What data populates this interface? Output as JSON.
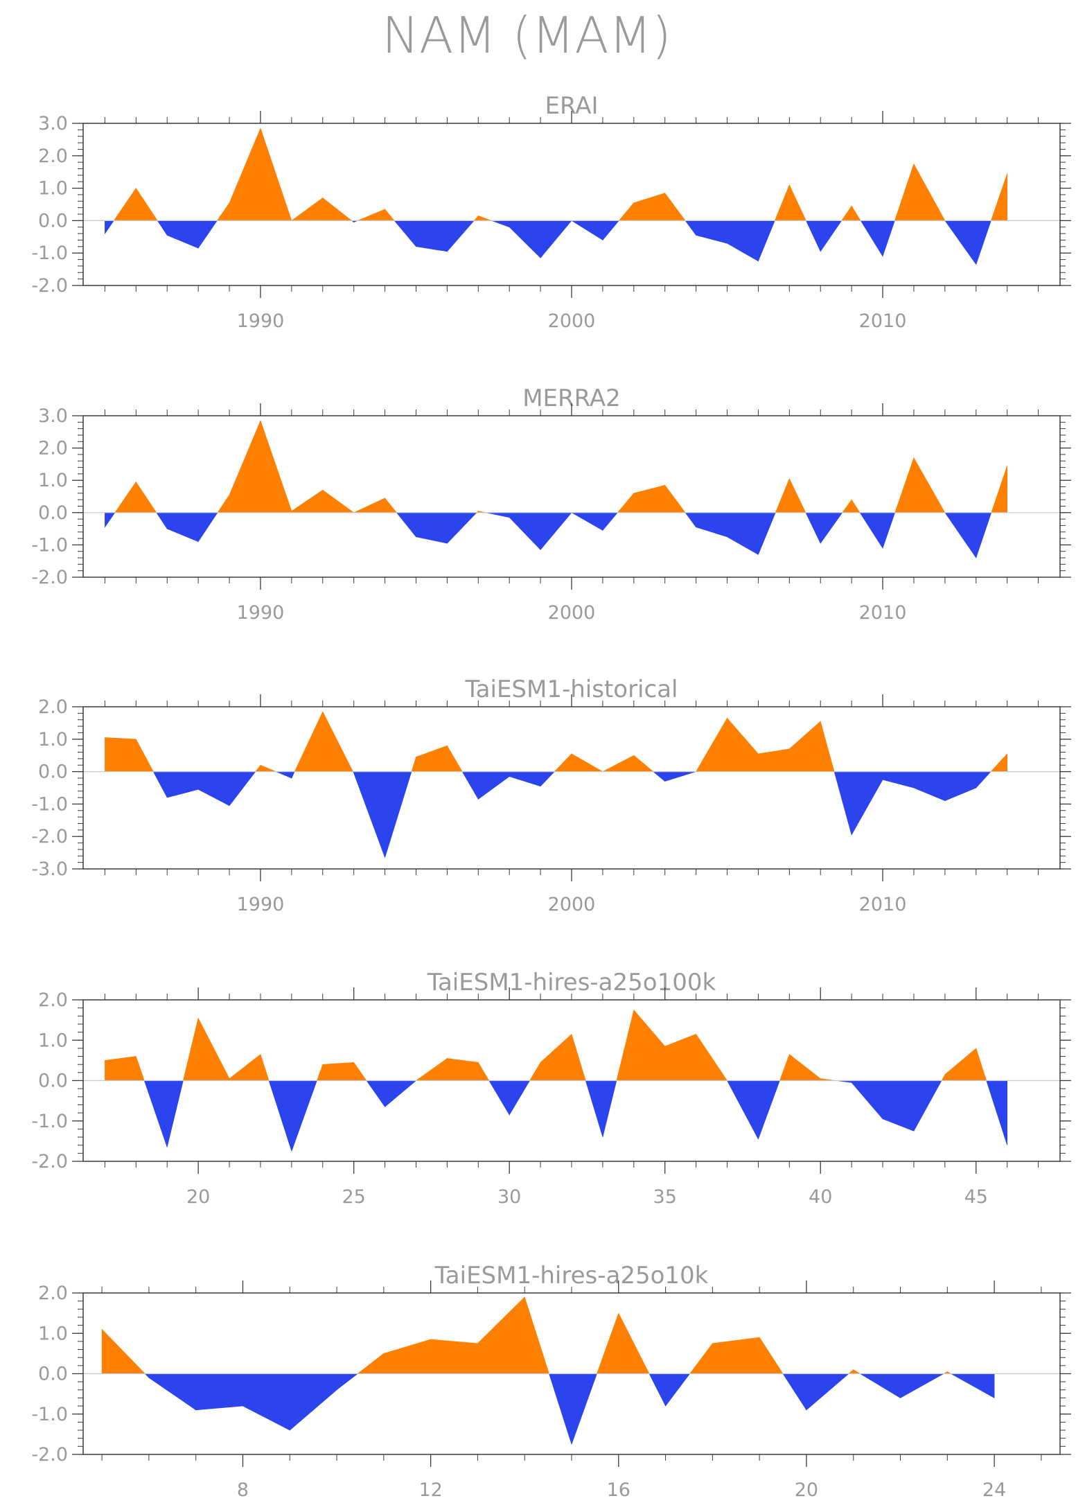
{
  "title": "NAM (MAM)",
  "colors": {
    "positive": "#ff8000",
    "negative": "#2b44ee",
    "axis": "#3a3a3a",
    "text": "#9a9a9a",
    "zero_line": "#c8c8c8"
  },
  "chart_data": [
    {
      "type": "area",
      "title": "ERAI",
      "xlim": [
        1984.3,
        2015.7
      ],
      "ylim": [
        -2.0,
        3.0
      ],
      "yticks": [
        -2.0,
        -1.0,
        0.0,
        1.0,
        2.0,
        3.0
      ],
      "ytick_labels": [
        "-2.0",
        "-1.0",
        "0.0",
        "1.0",
        "2.0",
        "3.0"
      ],
      "xticks_major": [
        1990,
        2000,
        2010
      ],
      "xtick_labels": [
        "1990",
        "2000",
        "2010"
      ],
      "xticks_minor": [
        1985,
        1986,
        1987,
        1988,
        1989,
        1991,
        1992,
        1993,
        1994,
        1995,
        1996,
        1997,
        1998,
        1999,
        2001,
        2002,
        2003,
        2004,
        2005,
        2006,
        2007,
        2008,
        2009,
        2011,
        2012,
        2013,
        2014,
        2015
      ],
      "x": [
        1985,
        1986,
        1987,
        1988,
        1989,
        1990,
        1991,
        1992,
        1993,
        1994,
        1995,
        1996,
        1997,
        1998,
        1999,
        2000,
        2001,
        2002,
        2003,
        2004,
        2005,
        2006,
        2007,
        2008,
        2009,
        2010,
        2011,
        2012,
        2013,
        2014
      ],
      "values": [
        -0.4,
        1.0,
        -0.45,
        -0.85,
        0.55,
        2.85,
        0.0,
        0.7,
        -0.05,
        0.35,
        -0.8,
        -0.95,
        0.15,
        -0.2,
        -1.15,
        0.0,
        -0.6,
        0.55,
        0.85,
        -0.45,
        -0.7,
        -1.25,
        1.1,
        -0.95,
        0.45,
        -1.1,
        1.75,
        0.0,
        -1.35,
        1.45
      ]
    },
    {
      "type": "area",
      "title": "MERRA2",
      "xlim": [
        1984.3,
        2015.7
      ],
      "ylim": [
        -2.0,
        3.0
      ],
      "yticks": [
        -2.0,
        -1.0,
        0.0,
        1.0,
        2.0,
        3.0
      ],
      "ytick_labels": [
        "-2.0",
        "-1.0",
        "0.0",
        "1.0",
        "2.0",
        "3.0"
      ],
      "xticks_major": [
        1990,
        2000,
        2010
      ],
      "xtick_labels": [
        "1990",
        "2000",
        "2010"
      ],
      "xticks_minor": [
        1985,
        1986,
        1987,
        1988,
        1989,
        1991,
        1992,
        1993,
        1994,
        1995,
        1996,
        1997,
        1998,
        1999,
        2001,
        2002,
        2003,
        2004,
        2005,
        2006,
        2007,
        2008,
        2009,
        2011,
        2012,
        2013,
        2014,
        2015
      ],
      "x": [
        1985,
        1986,
        1987,
        1988,
        1989,
        1990,
        1991,
        1992,
        1993,
        1994,
        1995,
        1996,
        1997,
        1998,
        1999,
        2000,
        2001,
        2002,
        2003,
        2004,
        2005,
        2006,
        2007,
        2008,
        2009,
        2010,
        2011,
        2012,
        2013,
        2014
      ],
      "values": [
        -0.45,
        0.95,
        -0.5,
        -0.9,
        0.55,
        2.85,
        0.05,
        0.7,
        0.0,
        0.45,
        -0.75,
        -0.95,
        0.05,
        -0.15,
        -1.15,
        0.0,
        -0.55,
        0.6,
        0.85,
        -0.45,
        -0.75,
        -1.3,
        1.05,
        -0.95,
        0.4,
        -1.1,
        1.7,
        0.0,
        -1.4,
        1.45
      ]
    },
    {
      "type": "area",
      "title": "TaiESM1-historical",
      "xlim": [
        1984.3,
        2015.7
      ],
      "ylim": [
        -3.0,
        2.0
      ],
      "yticks": [
        -3.0,
        -2.0,
        -1.0,
        0.0,
        1.0,
        2.0
      ],
      "ytick_labels": [
        "-3.0",
        "-2.0",
        "-1.0",
        "0.0",
        "1.0",
        "2.0"
      ],
      "xticks_major": [
        1990,
        2000,
        2010
      ],
      "xtick_labels": [
        "1990",
        "2000",
        "2010"
      ],
      "xticks_minor": [
        1985,
        1986,
        1987,
        1988,
        1989,
        1991,
        1992,
        1993,
        1994,
        1995,
        1996,
        1997,
        1998,
        1999,
        2001,
        2002,
        2003,
        2004,
        2005,
        2006,
        2007,
        2008,
        2009,
        2011,
        2012,
        2013,
        2014,
        2015
      ],
      "x": [
        1985,
        1986,
        1987,
        1988,
        1989,
        1990,
        1991,
        1992,
        1993,
        1994,
        1995,
        1996,
        1997,
        1998,
        1999,
        2000,
        2001,
        2002,
        2003,
        2004,
        2005,
        2006,
        2007,
        2008,
        2009,
        2010,
        2011,
        2012,
        2013,
        2014
      ],
      "values": [
        1.05,
        1.0,
        -0.8,
        -0.55,
        -1.05,
        0.2,
        -0.2,
        1.85,
        -0.05,
        -2.65,
        0.45,
        0.8,
        -0.85,
        -0.15,
        -0.45,
        0.55,
        0.0,
        0.5,
        -0.3,
        0.0,
        1.65,
        0.55,
        0.7,
        1.55,
        -1.95,
        -0.25,
        -0.5,
        -0.9,
        -0.5,
        0.55
      ]
    },
    {
      "type": "area",
      "title": "TaiESM1-hires-a25o100k",
      "xlim": [
        16.3,
        47.7
      ],
      "ylim": [
        -2.0,
        2.0
      ],
      "yticks": [
        -2.0,
        -1.0,
        0.0,
        1.0,
        2.0
      ],
      "ytick_labels": [
        "-2.0",
        "-1.0",
        "0.0",
        "1.0",
        "2.0"
      ],
      "xticks_major": [
        20,
        25,
        30,
        35,
        40,
        45
      ],
      "xtick_labels": [
        "20",
        "25",
        "30",
        "35",
        "40",
        "45"
      ],
      "xticks_minor": [
        17,
        18,
        19,
        21,
        22,
        23,
        24,
        26,
        27,
        28,
        29,
        31,
        32,
        33,
        34,
        36,
        37,
        38,
        39,
        41,
        42,
        43,
        44,
        46,
        47
      ],
      "x": [
        17,
        18,
        19,
        20,
        21,
        22,
        23,
        24,
        25,
        26,
        27,
        28,
        29,
        30,
        31,
        32,
        33,
        34,
        35,
        36,
        37,
        38,
        39,
        40,
        41,
        42,
        43,
        44,
        45,
        46
      ],
      "values": [
        0.5,
        0.6,
        -1.65,
        1.55,
        0.05,
        0.65,
        -1.75,
        0.4,
        0.45,
        -0.65,
        0.0,
        0.55,
        0.45,
        -0.85,
        0.45,
        1.15,
        -1.4,
        1.75,
        0.85,
        1.15,
        0.0,
        -1.45,
        0.65,
        0.05,
        -0.05,
        -0.95,
        -1.25,
        0.15,
        0.8,
        -1.6
      ]
    },
    {
      "type": "area",
      "title": "TaiESM1-hires-a25o10k",
      "xlim": [
        4.6,
        25.4
      ],
      "ylim": [
        -2.0,
        2.0
      ],
      "yticks": [
        -2.0,
        -1.0,
        0.0,
        1.0,
        2.0
      ],
      "ytick_labels": [
        "-2.0",
        "-1.0",
        "0.0",
        "1.0",
        "2.0"
      ],
      "xticks_major": [
        8,
        12,
        16,
        20,
        24
      ],
      "xtick_labels": [
        "8",
        "12",
        "16",
        "20",
        "24"
      ],
      "xticks_minor": [
        5,
        6,
        7,
        9,
        10,
        11,
        13,
        14,
        15,
        17,
        18,
        19,
        21,
        22,
        23,
        25
      ],
      "x": [
        5,
        6,
        7,
        8,
        9,
        10,
        11,
        12,
        13,
        14,
        15,
        16,
        17,
        18,
        19,
        20,
        21,
        22,
        23,
        24
      ],
      "values": [
        1.1,
        -0.1,
        -0.9,
        -0.8,
        -1.4,
        -0.4,
        0.5,
        0.85,
        0.75,
        1.9,
        -1.75,
        1.5,
        -0.8,
        0.75,
        0.9,
        -0.9,
        0.1,
        -0.6,
        0.05,
        -0.6
      ]
    }
  ]
}
